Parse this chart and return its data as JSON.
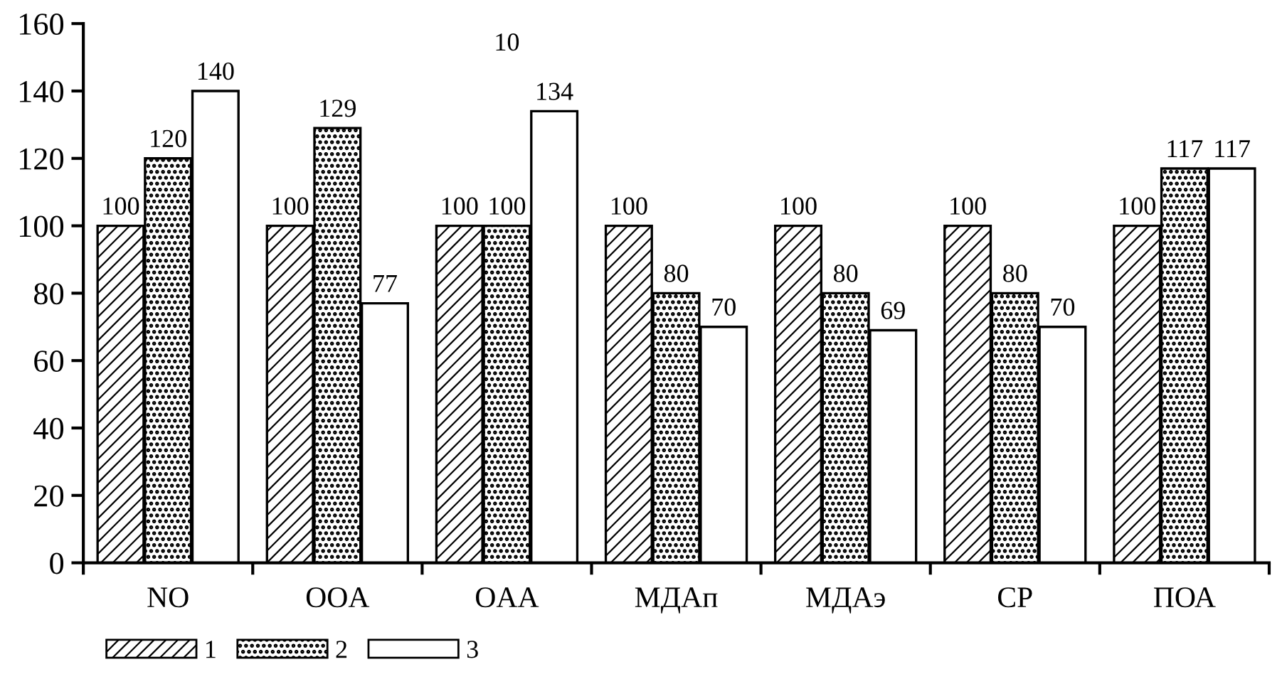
{
  "chart_data": {
    "type": "bar",
    "categories": [
      "NO",
      "OOA",
      "OAA",
      "МДАп",
      "МДАэ",
      "CP",
      "ПОА"
    ],
    "series": [
      {
        "name": "1",
        "color": "#000000",
        "values": [
          100,
          100,
          100,
          100,
          100,
          100,
          100
        ]
      },
      {
        "name": "2",
        "color": "#000000",
        "values": [
          120,
          129,
          100,
          80,
          80,
          80,
          117
        ]
      },
      {
        "name": "3",
        "color": "#ffffff",
        "values": [
          140,
          77,
          134,
          70,
          69,
          70,
          117
        ]
      }
    ],
    "ylim": [
      0,
      160
    ],
    "yticks": [
      0,
      20,
      40,
      60,
      80,
      100,
      120,
      140,
      160
    ],
    "data_labels": true,
    "grid": false,
    "legend": "bottom left",
    "annotations": [
      "10"
    ]
  }
}
